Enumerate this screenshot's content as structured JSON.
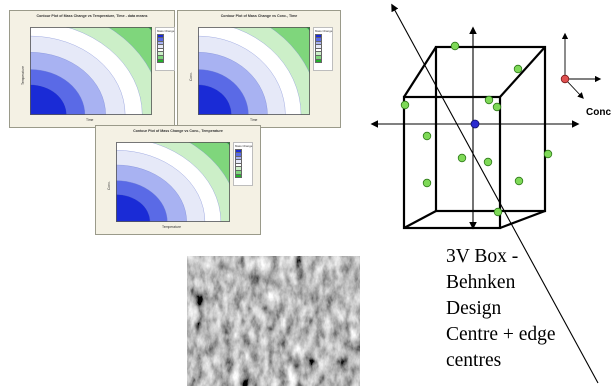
{
  "contour_plots": [
    {
      "title": "Contour Plot of Mass Change vs Temperature, Time - data means",
      "xlabel": "Time",
      "ylabel": "Temperature",
      "legend_title": "Mass Change"
    },
    {
      "title": "Contour Plot of Mass Change vs Conc., Time",
      "xlabel": "Time",
      "ylabel": "Conc.",
      "legend_title": "Mass Change"
    },
    {
      "title": "Contour Plot of Mass Change vs Conc., Temperature",
      "xlabel": "Temperature",
      "ylabel": "Conc.",
      "legend_title": "Mass Change"
    }
  ],
  "colors": {
    "deep_blue": "#1a2bd6",
    "mid_blue": "#5a6ae6",
    "light_blue": "#a8b2f2",
    "pale": "#e6e9f8",
    "white": "#ffffff",
    "pale_green": "#ccefc8",
    "mid_green": "#7fd67c",
    "deep_green": "#22b02a",
    "design_point": "#7ed957",
    "centre_point": "#2a2ad0",
    "axis_point": "#e05050"
  },
  "design_diagram": {
    "axis_label": "Conc",
    "lines": [
      "3V Box -",
      "Behnken",
      "Design",
      "Centre + edge",
      "centres"
    ]
  },
  "sem_image": {
    "icon": "sem-micrograph"
  }
}
